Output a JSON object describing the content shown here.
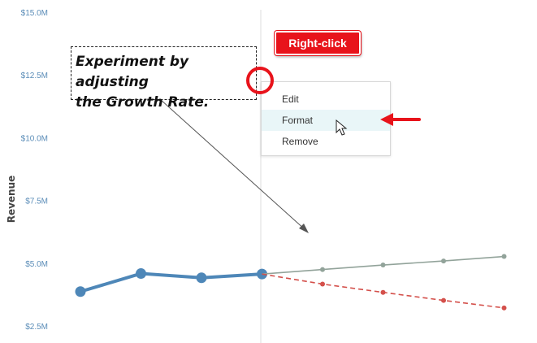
{
  "chart_data": {
    "type": "line",
    "title": "",
    "xlabel": "",
    "ylabel": "Revenue",
    "ylim": [
      2.5,
      15.0
    ],
    "yticks": [
      "$2.5M",
      "$5.0M",
      "$7.5M",
      "$10.0M",
      "$12.5M",
      "$15.0M"
    ],
    "ytick_values": [
      2.5,
      5.0,
      7.5,
      10.0,
      12.5,
      15.0
    ],
    "grid": false,
    "x_count": 8,
    "series": [
      {
        "values": [
          3.9,
          4.62,
          4.45,
          4.6,
          null,
          null,
          null,
          null
        ],
        "color": "#4e87b8",
        "style": "solid"
      },
      {
        "values": [
          null,
          null,
          null,
          4.6,
          4.78,
          4.96,
          5.12,
          5.3
        ],
        "color": "#92a39a",
        "style": "solid"
      },
      {
        "values": [
          null,
          null,
          null,
          4.6,
          4.2,
          3.87,
          3.55,
          3.25
        ],
        "color": "#d4504b",
        "style": "dashed"
      }
    ]
  },
  "annotation": {
    "text": "Experiment by adjusting\nthe Growth Rate."
  },
  "context_menu": {
    "items": [
      "Edit",
      "Format",
      "Remove"
    ],
    "hovered": "Format"
  },
  "callout": {
    "label": "Right-click"
  },
  "colors": {
    "accent_red": "#e8131b",
    "menu_hover": "#e9f6f8",
    "axis_text": "#5b8db8"
  }
}
